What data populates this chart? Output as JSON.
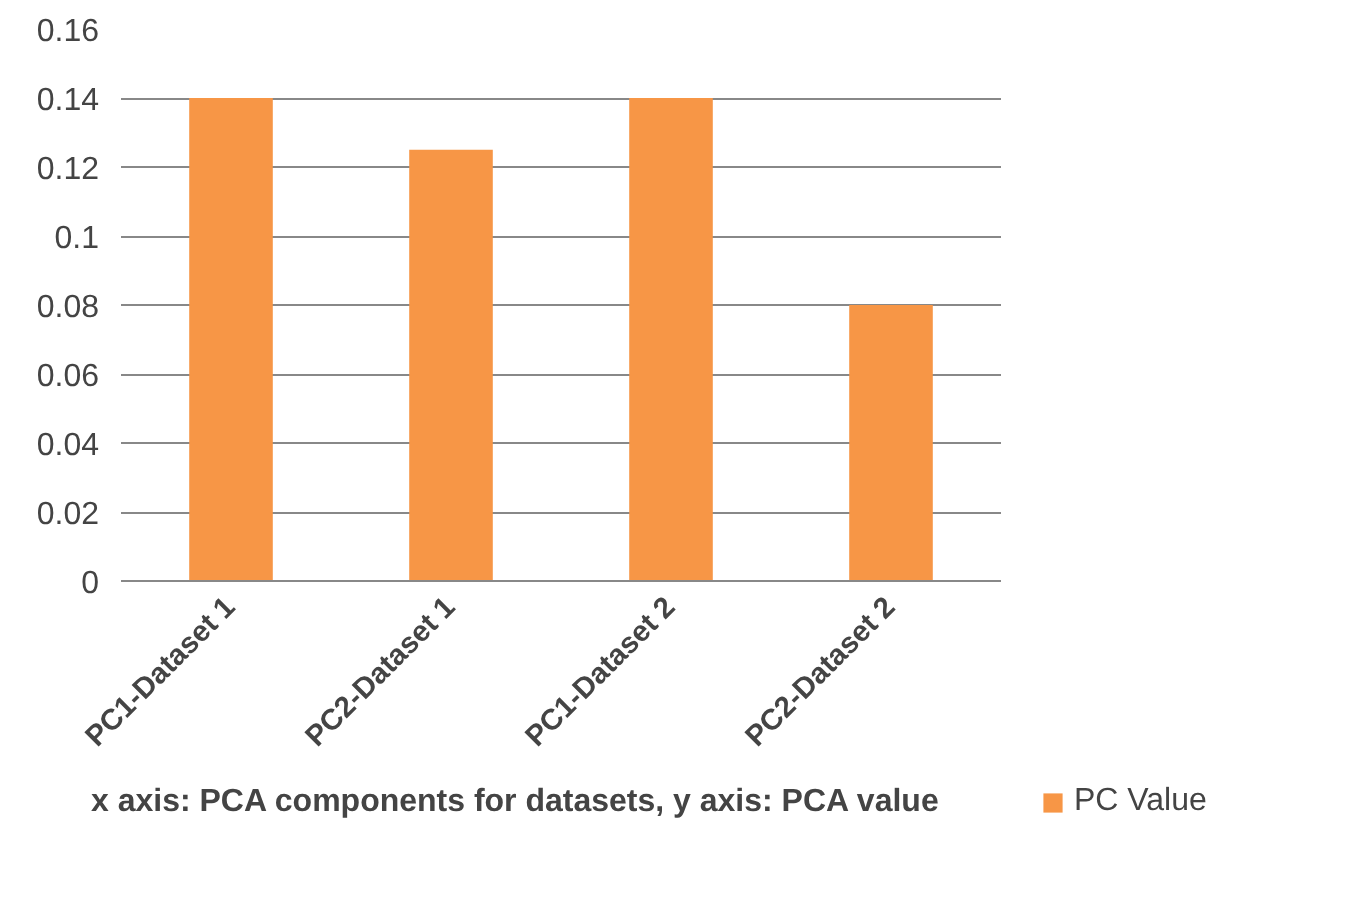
{
  "chart_data": {
    "type": "bar",
    "categories": [
      "PC1-Dataset 1",
      "PC2-Dataset 1",
      "PC1-Dataset 2",
      "PC2-Dataset 2"
    ],
    "series": [
      {
        "name": "PC Value",
        "color": "#f79646",
        "values": [
          0.14,
          0.125,
          0.14,
          0.08
        ]
      }
    ],
    "ylim": [
      0,
      0.16
    ],
    "yticks": [
      0,
      0.02,
      0.04,
      0.06,
      0.08,
      0.1,
      0.12,
      0.14,
      0.16
    ],
    "grid": "y",
    "legend": "right",
    "annotations": [
      "x  axis: PCA components  for datasets, y axis: PCA value"
    ]
  }
}
